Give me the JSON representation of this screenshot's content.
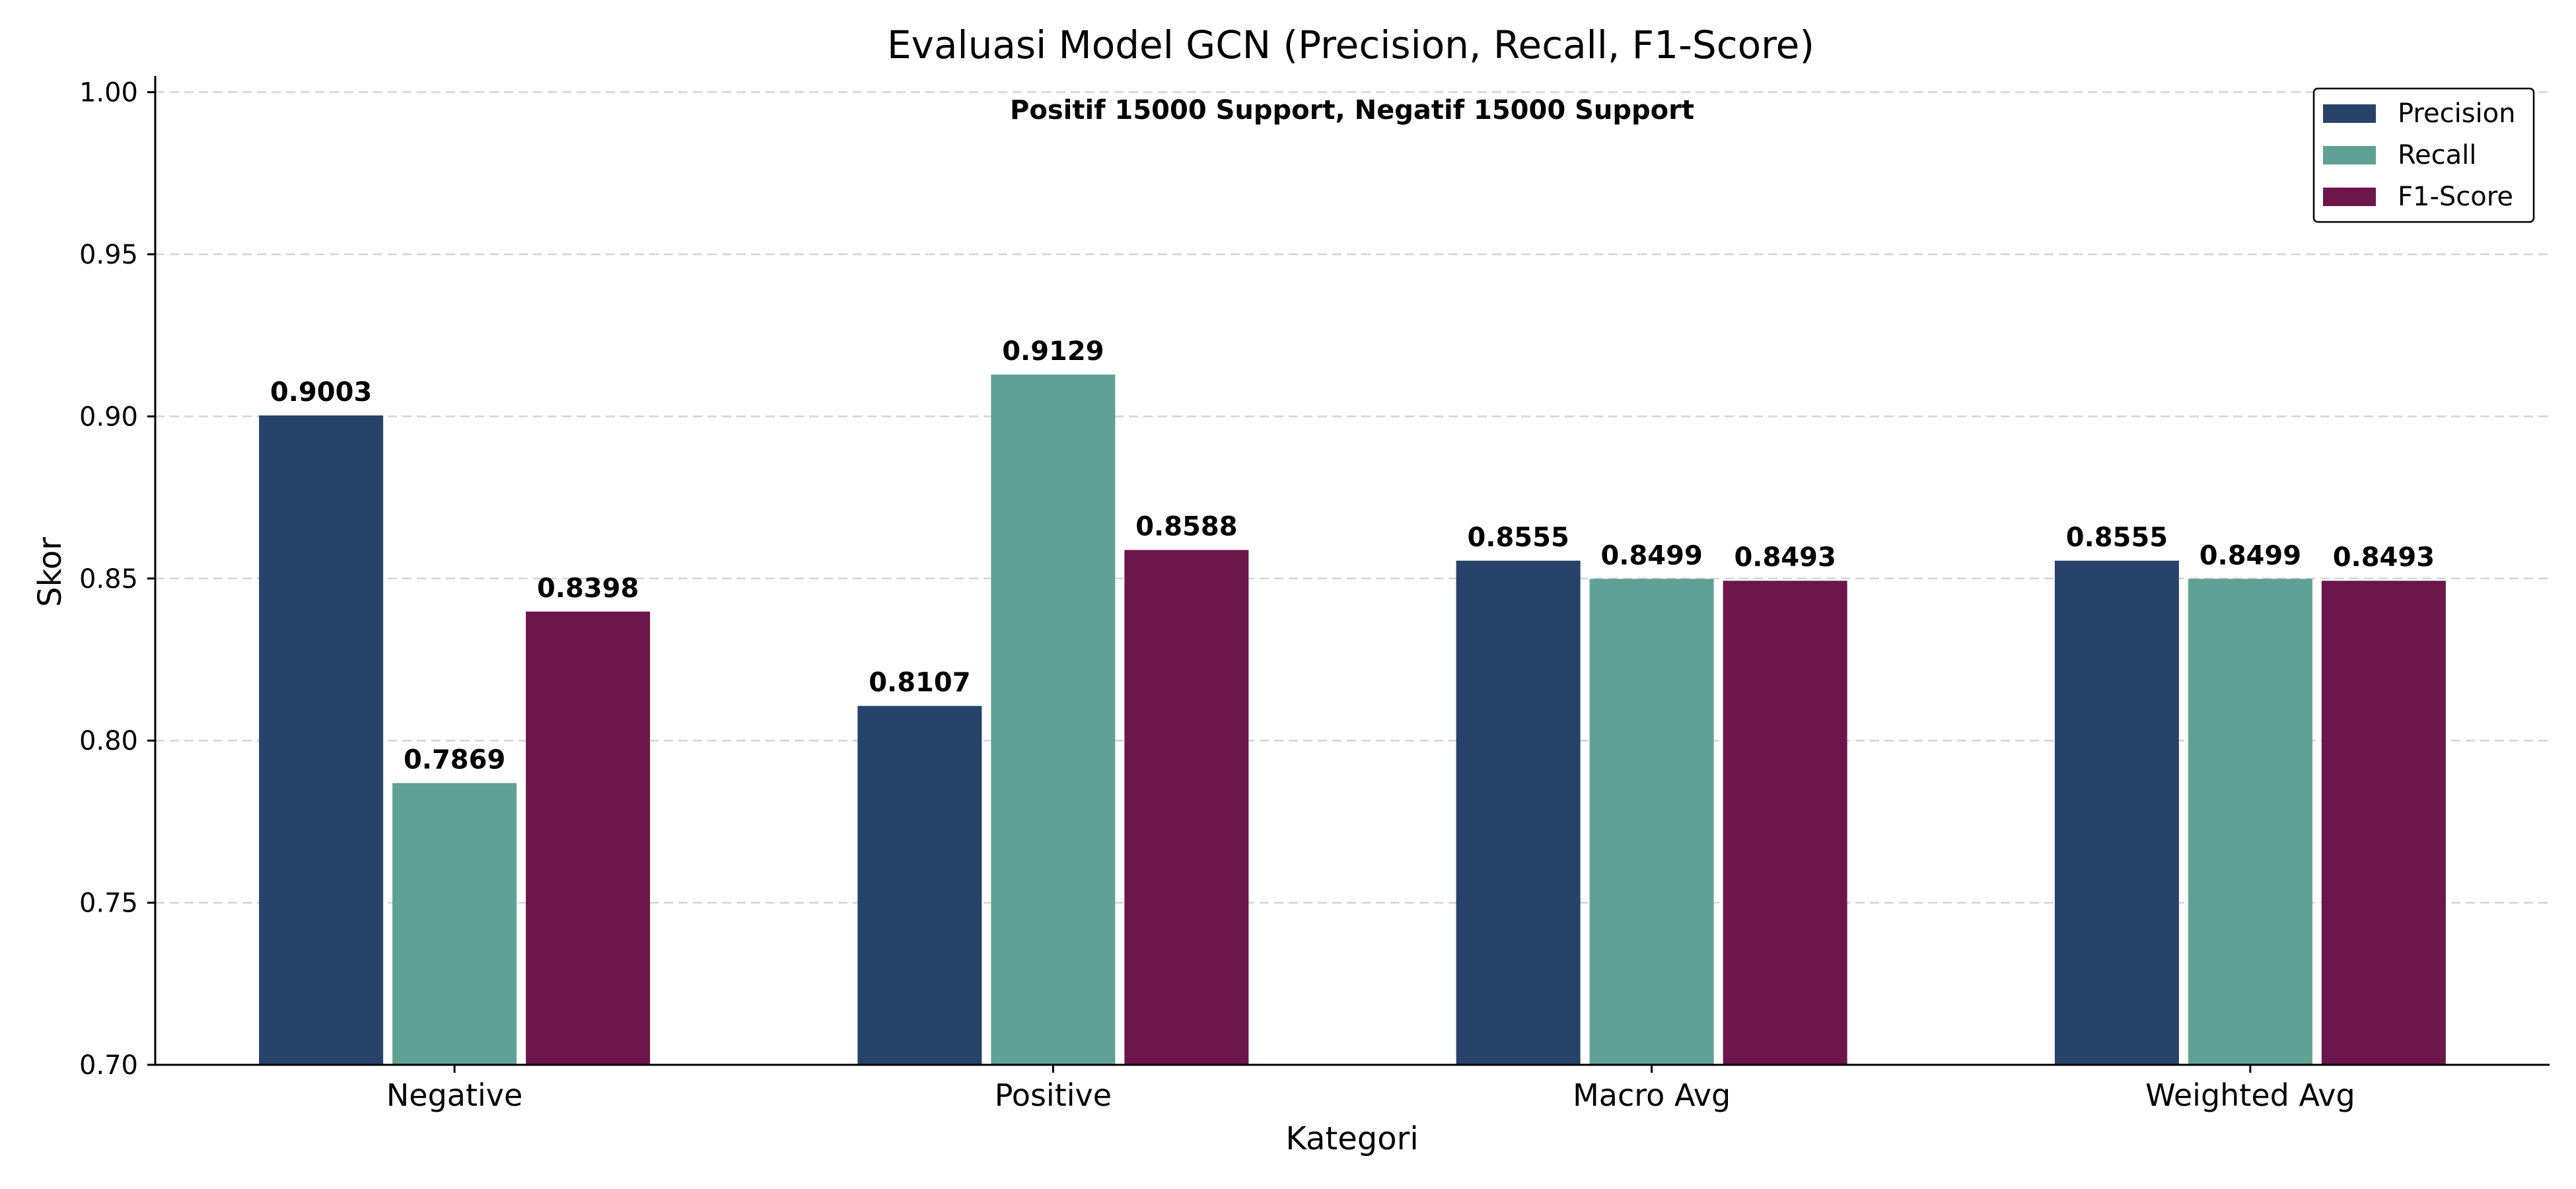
{
  "chart_data": {
    "type": "bar",
    "title": "Evaluasi Model GCN (Precision, Recall, F1-Score)",
    "subtitle": "Positif 15000 Support, Negatif 15000 Support",
    "xlabel": "Kategori",
    "ylabel": "Skor",
    "ylim": [
      0.7,
      1.005
    ],
    "yticks": [
      "0.70",
      "0.75",
      "0.80",
      "0.85",
      "0.90",
      "0.95",
      "1.00"
    ],
    "grid": "horizontal-dashed",
    "legend_position": "top-right",
    "categories": [
      "Negative",
      "Positive",
      "Macro Avg",
      "Weighted Avg"
    ],
    "series": [
      {
        "name": "Precision",
        "color": "#27436a",
        "values": [
          0.9003,
          0.8107,
          0.8555,
          0.8555
        ],
        "labels": [
          "0.9003",
          "0.8107",
          "0.8555",
          "0.8555"
        ]
      },
      {
        "name": "Recall",
        "color": "#60a196",
        "values": [
          0.7869,
          0.9129,
          0.8499,
          0.8499
        ],
        "labels": [
          "0.7869",
          "0.9129",
          "0.8499",
          "0.8499"
        ]
      },
      {
        "name": "F1-Score",
        "color": "#6d164b",
        "values": [
          0.8398,
          0.8588,
          0.8493,
          0.8493
        ],
        "labels": [
          "0.8398",
          "0.8588",
          "0.8493",
          "0.8493"
        ]
      }
    ]
  }
}
